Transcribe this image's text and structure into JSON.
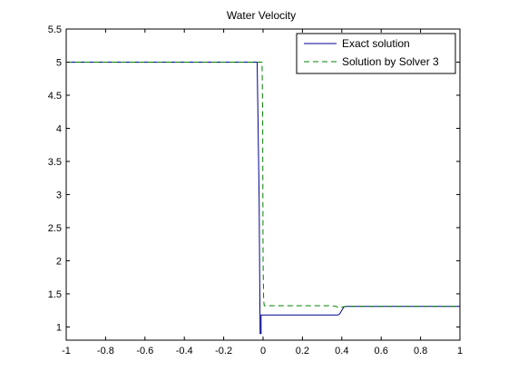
{
  "chart_data": {
    "type": "line",
    "title": "Water Velocity",
    "xlabel": "",
    "ylabel": "",
    "xlim": [
      -1,
      1
    ],
    "ylim": [
      0.8,
      5.5
    ],
    "x_ticks": [
      "-1",
      "-0.8",
      "-0.6",
      "-0.4",
      "-0.2",
      "0",
      "0.2",
      "0.4",
      "0.6",
      "0.8",
      "1"
    ],
    "y_ticks": [
      "1",
      "1.5",
      "2",
      "2.5",
      "3",
      "3.5",
      "4",
      "4.5",
      "5",
      "5.5"
    ],
    "grid": false,
    "legend_position": "top-right",
    "series": [
      {
        "name": "Exact solution",
        "color": "#00008f",
        "dash": "solid",
        "x": [
          -1,
          -0.06,
          -0.06,
          -0.03,
          -0.02,
          -0.015,
          -0.01,
          -0.01,
          0.0,
          0.0,
          0.38,
          0.39,
          0.4,
          0.41,
          0.42,
          1.0
        ],
        "y": [
          5.0,
          5.0,
          5.0,
          5.0,
          2.95,
          0.9,
          0.9,
          1.18,
          1.18,
          1.18,
          1.18,
          1.2,
          1.25,
          1.3,
          1.31,
          1.31
        ]
      },
      {
        "name": "Solution by Solver 3",
        "color": "#008000",
        "dash": "dashed",
        "x": [
          -1,
          -0.005,
          -0.002,
          0.0,
          0.003,
          0.006,
          0.35,
          0.37,
          0.38,
          0.39,
          0.4,
          0.42,
          1.0
        ],
        "y": [
          5.0,
          5.0,
          4.2,
          2.0,
          1.4,
          1.32,
          1.32,
          1.31,
          1.3,
          1.29,
          1.3,
          1.31,
          1.31
        ]
      }
    ]
  }
}
